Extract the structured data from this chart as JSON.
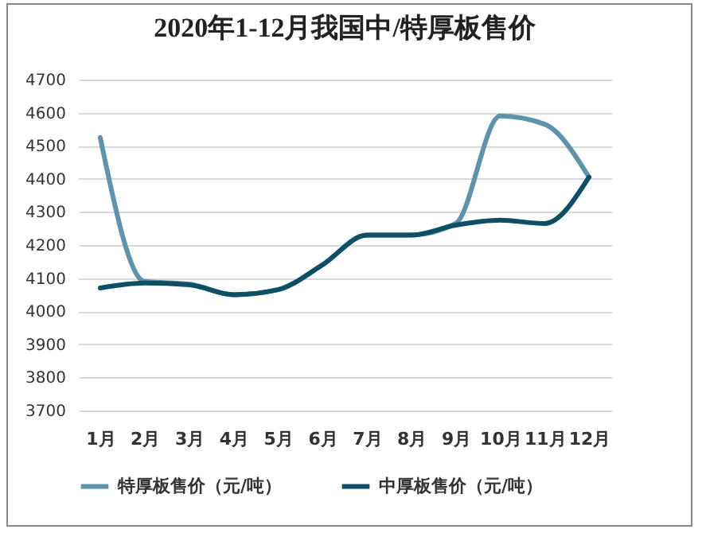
{
  "chart_data": {
    "type": "line",
    "title": "2020年1-12月我国中/特厚板售价",
    "categories": [
      "1月",
      "2月",
      "3月",
      "4月",
      "5月",
      "6月",
      "7月",
      "8月",
      "9月",
      "10月",
      "11月",
      "12月"
    ],
    "series": [
      {
        "name": "特厚板售价（元/吨）",
        "color": "#5e93ab",
        "values": [
          4525,
          4090,
          4082,
          4050,
          4065,
          4140,
          4230,
          4230,
          4265,
          4590,
          4565,
          4405
        ]
      },
      {
        "name": "中厚板售价（元/吨）",
        "color": "#0e4f66",
        "values": [
          4070,
          4085,
          4080,
          4050,
          4065,
          4140,
          4230,
          4230,
          4260,
          4275,
          4265,
          4405
        ]
      }
    ],
    "ylim": [
      3700,
      4700
    ],
    "yticks": [
      3700,
      3800,
      3900,
      4000,
      4100,
      4200,
      4300,
      4400,
      4500,
      4600,
      4700
    ],
    "grid": "y",
    "legend": "bottom",
    "marker": "none",
    "line_style": "solid"
  }
}
